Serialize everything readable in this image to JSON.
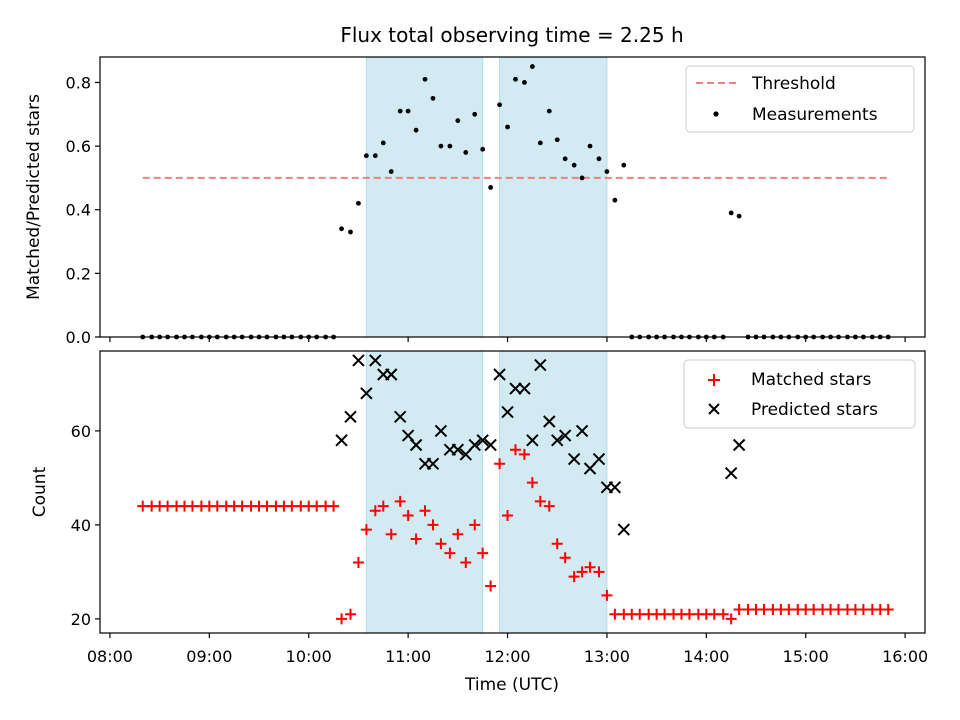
{
  "title": "Flux total observing time = 2.25 h",
  "xlabel": "Time (UTC)",
  "xticks": [
    "08:00",
    "09:00",
    "10:00",
    "11:00",
    "12:00",
    "13:00",
    "14:00",
    "15:00",
    "16:00"
  ],
  "colors": {
    "threshold": "#f08080",
    "shade": "#add8e6",
    "matched": "#ff0000",
    "predicted": "#000000",
    "measurement": "#000000"
  },
  "chart_data": [
    {
      "type": "scatter",
      "ylabel": "Matched/Predicted stars",
      "xlim_hours": [
        7.9,
        16.2
      ],
      "ylim": [
        0,
        0.88
      ],
      "yticks": [
        "0.0",
        "0.2",
        "0.4",
        "0.6",
        "0.8"
      ],
      "ytick_values": [
        0,
        0.2,
        0.4,
        0.6,
        0.8
      ],
      "legend_position": "top-right",
      "legend": [
        "Threshold",
        "Measurements"
      ],
      "shaded_intervals_hours": [
        [
          10.58,
          11.75
        ],
        [
          11.92,
          13.0
        ]
      ],
      "threshold": {
        "name": "Threshold",
        "y": 0.5,
        "x_range_hours": [
          8.33,
          15.83
        ]
      },
      "measurements": {
        "name": "Measurements",
        "x": [
          8.33,
          8.42,
          8.5,
          8.58,
          8.67,
          8.75,
          8.83,
          8.92,
          9.0,
          9.08,
          9.17,
          9.25,
          9.33,
          9.42,
          9.5,
          9.58,
          9.67,
          9.75,
          9.83,
          9.92,
          10.0,
          10.08,
          10.17,
          10.25,
          10.33,
          10.42,
          10.5,
          10.58,
          10.67,
          10.75,
          10.83,
          10.92,
          11.0,
          11.08,
          11.17,
          11.25,
          11.33,
          11.42,
          11.5,
          11.58,
          11.67,
          11.75,
          11.83,
          11.92,
          12.0,
          12.08,
          12.17,
          12.25,
          12.33,
          12.42,
          12.5,
          12.58,
          12.67,
          12.75,
          12.83,
          12.92,
          13.0,
          13.08,
          13.17,
          13.25,
          13.33,
          13.42,
          13.5,
          13.58,
          13.67,
          13.75,
          13.83,
          13.92,
          14.0,
          14.08,
          14.17,
          14.25,
          14.33,
          14.42,
          14.5,
          14.58,
          14.67,
          14.75,
          14.83,
          14.92,
          15.0,
          15.08,
          15.17,
          15.25,
          15.33,
          15.42,
          15.5,
          15.58,
          15.67,
          15.75,
          15.83
        ],
        "y": [
          0,
          0,
          0,
          0,
          0,
          0,
          0,
          0,
          0,
          0,
          0,
          0,
          0,
          0,
          0,
          0,
          0,
          0,
          0,
          0,
          0,
          0,
          0,
          0,
          0.34,
          0.33,
          0.42,
          0.57,
          0.57,
          0.61,
          0.52,
          0.71,
          0.71,
          0.65,
          0.81,
          0.75,
          0.6,
          0.6,
          0.68,
          0.58,
          0.7,
          0.59,
          0.47,
          0.73,
          0.66,
          0.81,
          0.8,
          0.85,
          0.61,
          0.71,
          0.62,
          0.56,
          0.54,
          0.5,
          0.6,
          0.56,
          0.52,
          0.43,
          0.54,
          0,
          0,
          0,
          0,
          0,
          0,
          0,
          0,
          0,
          0,
          0,
          0,
          0.39,
          0.38,
          0,
          0,
          0,
          0,
          0,
          0,
          0,
          0,
          0,
          0,
          0,
          0,
          0,
          0,
          0,
          0,
          0,
          0
        ]
      }
    },
    {
      "type": "scatter",
      "ylabel": "Count",
      "xlabel": "Time (UTC)",
      "xlim_hours": [
        7.9,
        16.2
      ],
      "ylim": [
        17,
        77
      ],
      "yticks": [
        "20",
        "40",
        "60"
      ],
      "ytick_values": [
        20,
        40,
        60
      ],
      "legend_position": "top-right",
      "legend": [
        "Matched stars",
        "Predicted stars"
      ],
      "shaded_intervals_hours": [
        [
          10.58,
          11.75
        ],
        [
          11.92,
          13.0
        ]
      ],
      "matched": {
        "name": "Matched stars",
        "x": [
          8.33,
          8.42,
          8.5,
          8.58,
          8.67,
          8.75,
          8.83,
          8.92,
          9.0,
          9.08,
          9.17,
          9.25,
          9.33,
          9.42,
          9.5,
          9.58,
          9.67,
          9.75,
          9.83,
          9.92,
          10.0,
          10.08,
          10.17,
          10.25,
          10.33,
          10.42,
          10.5,
          10.58,
          10.67,
          10.75,
          10.83,
          10.92,
          11.0,
          11.08,
          11.17,
          11.25,
          11.33,
          11.42,
          11.5,
          11.58,
          11.67,
          11.75,
          11.83,
          11.92,
          12.0,
          12.08,
          12.17,
          12.25,
          12.33,
          12.42,
          12.5,
          12.58,
          12.67,
          12.75,
          12.83,
          12.92,
          13.0,
          13.08,
          13.17,
          13.25,
          13.33,
          13.42,
          13.5,
          13.58,
          13.67,
          13.75,
          13.83,
          13.92,
          14.0,
          14.08,
          14.17,
          14.25,
          14.33,
          14.42,
          14.5,
          14.58,
          14.67,
          14.75,
          14.83,
          14.92,
          15.0,
          15.08,
          15.17,
          15.25,
          15.33,
          15.42,
          15.5,
          15.58,
          15.67,
          15.75,
          15.83
        ],
        "y": [
          44,
          44,
          44,
          44,
          44,
          44,
          44,
          44,
          44,
          44,
          44,
          44,
          44,
          44,
          44,
          44,
          44,
          44,
          44,
          44,
          44,
          44,
          44,
          44,
          20,
          21,
          32,
          39,
          43,
          44,
          38,
          45,
          42,
          37,
          43,
          40,
          36,
          34,
          38,
          32,
          40,
          34,
          27,
          53,
          42,
          56,
          55,
          49,
          45,
          44,
          36,
          33,
          29,
          30,
          31,
          30,
          25,
          21,
          21,
          21,
          21,
          21,
          21,
          21,
          21,
          21,
          21,
          21,
          21,
          21,
          21,
          20,
          22,
          22,
          22,
          22,
          22,
          22,
          22,
          22,
          22,
          22,
          22,
          22,
          22,
          22,
          22,
          22,
          22,
          22,
          22
        ]
      },
      "predicted": {
        "name": "Predicted stars",
        "x": [
          10.33,
          10.42,
          10.5,
          10.58,
          10.67,
          10.75,
          10.83,
          10.92,
          11.0,
          11.08,
          11.17,
          11.25,
          11.33,
          11.42,
          11.5,
          11.58,
          11.67,
          11.75,
          11.83,
          11.92,
          12.0,
          12.08,
          12.17,
          12.25,
          12.33,
          12.42,
          12.5,
          12.58,
          12.67,
          12.75,
          12.83,
          12.92,
          13.0,
          13.08,
          13.17,
          14.25,
          14.33
        ],
        "y": [
          58,
          63,
          75,
          68,
          75,
          72,
          72,
          63,
          59,
          57,
          53,
          53,
          60,
          56,
          56,
          55,
          57,
          58,
          57,
          72,
          64,
          69,
          69,
          58,
          74,
          62,
          58,
          59,
          54,
          60,
          52,
          54,
          48,
          48,
          39,
          51,
          57
        ]
      }
    }
  ]
}
